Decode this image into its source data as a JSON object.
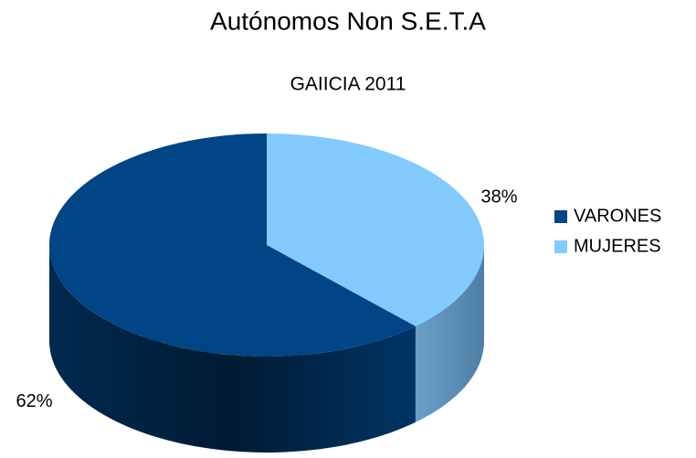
{
  "chart_data": {
    "type": "pie3d",
    "title": "Autónomos Non S.E.T.A",
    "subtitle": "GAIICIA 2011",
    "categories": [
      "VARONES",
      "MUJERES"
    ],
    "values": [
      62,
      38
    ],
    "value_labels": [
      "62%",
      "38%"
    ],
    "colors": [
      "#004586",
      "#83caff"
    ],
    "legend": "right"
  }
}
